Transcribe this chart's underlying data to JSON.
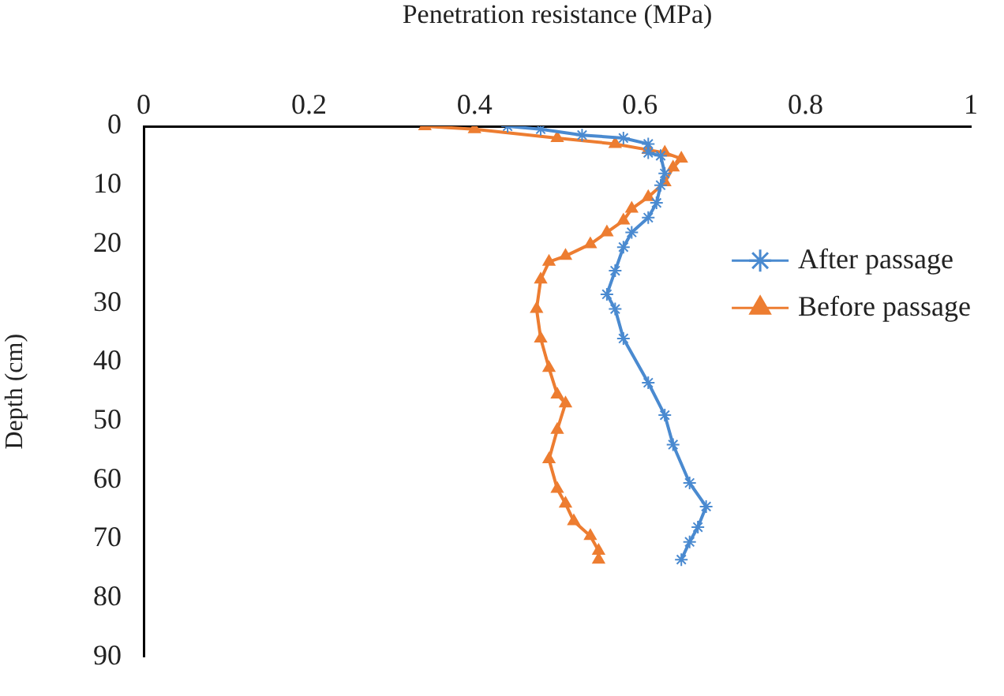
{
  "chart_data": {
    "type": "line",
    "xlabel": "Penetration resistance (MPa)",
    "ylabel": "Depth (cm)",
    "xlim": [
      0,
      1
    ],
    "xticks": [
      0,
      0.2,
      0.4,
      0.6,
      0.8,
      1
    ],
    "ylim": [
      90,
      0
    ],
    "yticks": [
      0,
      10,
      20,
      30,
      40,
      50,
      60,
      70,
      80,
      90
    ],
    "grid": false,
    "legend": "right",
    "series": [
      {
        "name": "After passage",
        "color": "#4a8ad0",
        "marker": "cross",
        "x": [
          0.44,
          0.48,
          0.53,
          0.58,
          0.61,
          0.61,
          0.625,
          0.63,
          0.625,
          0.62,
          0.61,
          0.59,
          0.58,
          0.57,
          0.56,
          0.57,
          0.58,
          0.61,
          0.63,
          0.64,
          0.66,
          0.68,
          0.67,
          0.66,
          0.65
        ],
        "values": [
          0,
          0.5,
          1.5,
          2,
          3,
          4.5,
          5,
          8,
          10,
          13,
          15.5,
          18,
          20.5,
          24.5,
          28.5,
          31,
          36,
          43.5,
          49,
          54,
          60.5,
          64.5,
          68,
          70.5,
          73.5
        ]
      },
      {
        "name": "Before passage",
        "color": "#ed7d31",
        "marker": "triangle",
        "x": [
          0.34,
          0.4,
          0.5,
          0.57,
          0.61,
          0.63,
          0.65,
          0.64,
          0.63,
          0.61,
          0.59,
          0.58,
          0.56,
          0.54,
          0.51,
          0.49,
          0.48,
          0.475,
          0.48,
          0.49,
          0.5,
          0.51,
          0.5,
          0.49,
          0.5,
          0.51,
          0.52,
          0.54,
          0.55,
          0.55
        ],
        "values": [
          0,
          0.5,
          2,
          3,
          4,
          4.5,
          5.5,
          7,
          9.5,
          12,
          14,
          16,
          18,
          20,
          22,
          23,
          26,
          31,
          36,
          41,
          45.5,
          47,
          51.5,
          56.5,
          61.5,
          64,
          67,
          69.5,
          72,
          73.5
        ]
      }
    ]
  }
}
